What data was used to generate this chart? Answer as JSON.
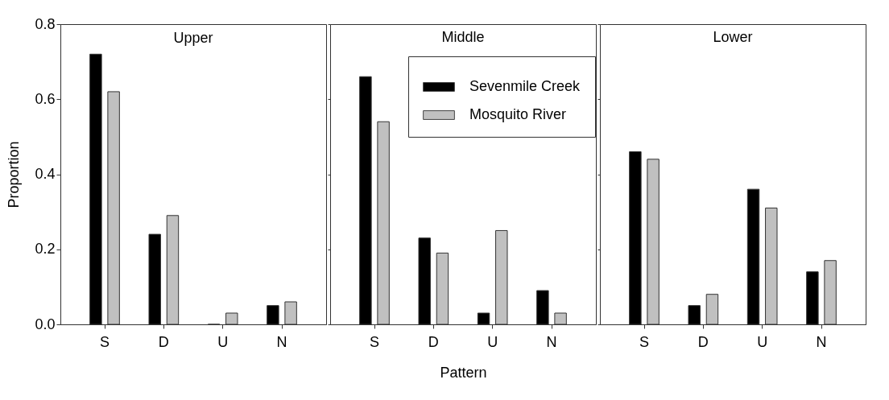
{
  "chart_data": [
    {
      "type": "bar",
      "title": "Upper",
      "ylabel": "Proportion",
      "categories": [
        "S",
        "D",
        "U",
        "N"
      ],
      "ylim": [
        0,
        0.8
      ],
      "yticks": [
        {
          "value": 0,
          "label": "0.0"
        },
        0.2,
        0.4,
        0.6,
        0.8
      ],
      "series": [
        {
          "color": "#000000",
          "values": [
            0.72,
            0.24,
            0,
            0.05
          ]
        },
        {
          "color": "#c0c0c0",
          "values": [
            0.62,
            0.29,
            0.03,
            0.06
          ]
        }
      ]
    },
    {
      "type": "bar",
      "title": "Middle",
      "xlabel": "Pattern",
      "categories": [
        "S",
        "D",
        "U",
        "N"
      ],
      "ylim": [
        0,
        0.8
      ],
      "yticks": [
        0,
        0.2,
        0.4,
        0.6,
        0.8
      ],
      "tick_labels": "x",
      "legend": "top right",
      "series": [
        {
          "name": "Sevenmile Creek",
          "color": "#000000",
          "values": [
            0.66,
            0.23,
            0.03,
            0.09
          ]
        },
        {
          "name": "Mosquito River",
          "color": "#c0c0c0",
          "values": [
            0.54,
            0.19,
            0.25,
            0.03
          ]
        }
      ]
    },
    {
      "type": "bar",
      "title": "Lower",
      "categories": [
        "S",
        "D",
        "U",
        "N"
      ],
      "ylim": [
        0,
        0.8
      ],
      "yticks": [
        0,
        0.2,
        0.4,
        0.6,
        0.8
      ],
      "tick_labels": "x",
      "series": [
        {
          "color": "#000000",
          "values": [
            0.46,
            0.05,
            0.36,
            0.14
          ]
        },
        {
          "color": "#c0c0c0",
          "values": [
            0.44,
            0.08,
            0.31,
            0.17
          ]
        }
      ]
    }
  ]
}
